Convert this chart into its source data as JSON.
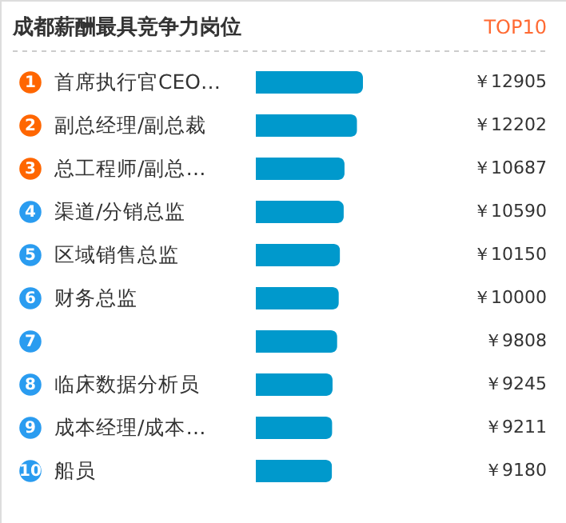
{
  "chart_data": {
    "type": "bar",
    "orientation": "horizontal",
    "title": "成都薪酬最具竞争力岗位",
    "subtitle": "TOP10",
    "categories": [
      "首席执行官CEO…",
      "副总经理/副总裁",
      "总工程师/副总…",
      "渠道/分销总监",
      "区域销售总监",
      "财务总监",
      null,
      "临床数据分析员",
      "成本经理/成本…",
      "船员"
    ],
    "values": [
      12905,
      12202,
      10687,
      10590,
      10150,
      10000,
      9808,
      9245,
      9211,
      9180
    ],
    "value_labels": [
      "￥12905",
      "￥12202",
      "￥10687",
      "￥10590",
      "￥10150",
      "￥10000",
      "￥9808",
      "￥9245",
      "￥9211",
      "￥9180"
    ],
    "annotations": [
      "1",
      "2",
      "3",
      "4",
      "5",
      "6",
      "7",
      "8",
      "9",
      "10"
    ],
    "color": "#0099cc"
  }
}
